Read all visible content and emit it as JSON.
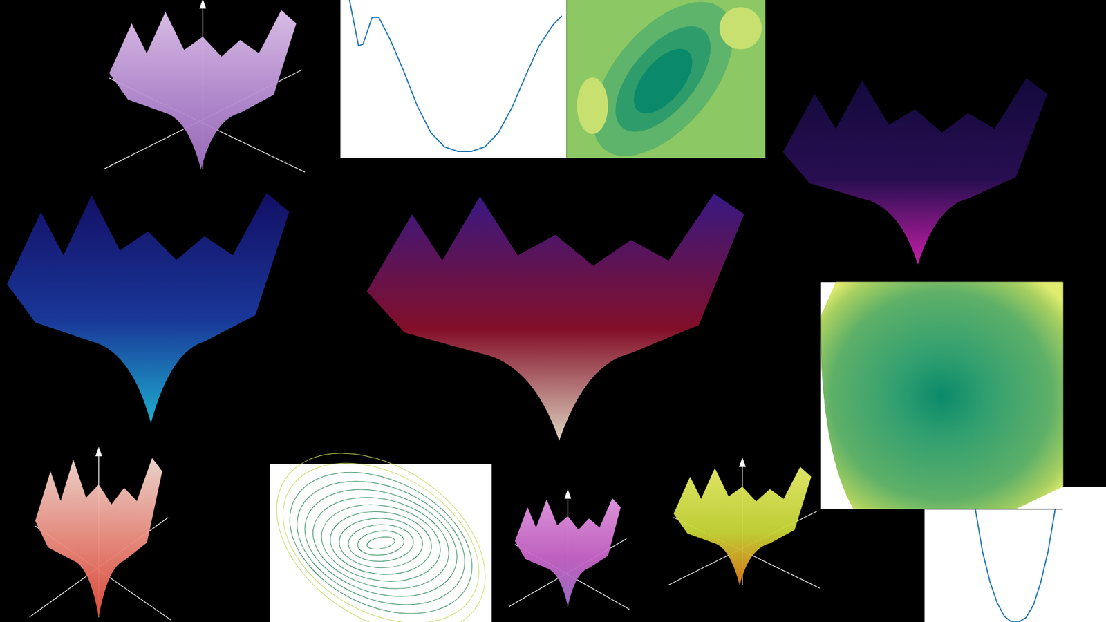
{
  "chart_data": [
    {
      "type": "line",
      "x": [
        0.04,
        0.08,
        0.1,
        0.14,
        0.17,
        0.22,
        0.28,
        0.34,
        0.4,
        0.46,
        0.52,
        0.58,
        0.64,
        0.7,
        0.76,
        0.82,
        0.88,
        0.94,
        0.98
      ],
      "values": [
        1.0,
        0.71,
        0.72,
        0.89,
        0.89,
        0.75,
        0.55,
        0.33,
        0.16,
        0.07,
        0.04,
        0.04,
        0.07,
        0.16,
        0.32,
        0.52,
        0.71,
        0.84,
        0.9
      ],
      "xlim": [
        0,
        1
      ],
      "ylim": [
        0,
        1
      ],
      "color": "#1f77b4",
      "tick_labels": false
    },
    {
      "type": "line",
      "x": [
        0.28,
        0.32,
        0.36,
        0.4,
        0.44,
        0.48,
        0.52,
        0.56,
        0.6,
        0.64,
        0.68,
        0.72
      ],
      "values": [
        1.0,
        0.62,
        0.36,
        0.17,
        0.05,
        0.0,
        0.0,
        0.04,
        0.15,
        0.35,
        0.62,
        1.0
      ],
      "xlim": [
        0,
        1
      ],
      "ylim": [
        0,
        1.2
      ],
      "color": "#1f77b4",
      "tick_labels": false
    }
  ]
}
